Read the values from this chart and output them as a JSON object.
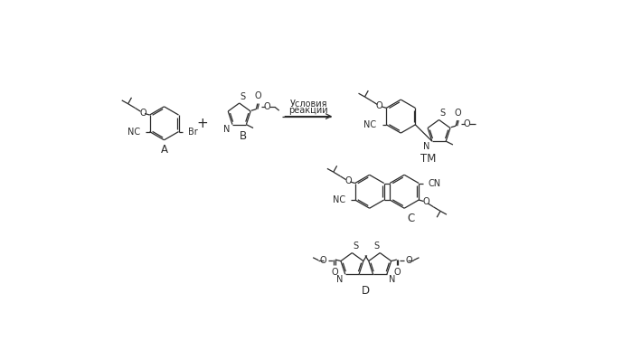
{
  "bg_color": "#ffffff",
  "line_color": "#2b2b2b",
  "text_color": "#2b2b2b",
  "figsize": [
    6.99,
    3.98
  ],
  "dpi": 100,
  "reaction_text_line1": "Условия",
  "reaction_text_line2": "реакции",
  "label_A": "A",
  "label_B": "B",
  "label_TM": "ТМ",
  "label_C": "C",
  "label_D": "D",
  "font_size": 7.0,
  "label_font_size": 8.5,
  "line_width": 0.9
}
